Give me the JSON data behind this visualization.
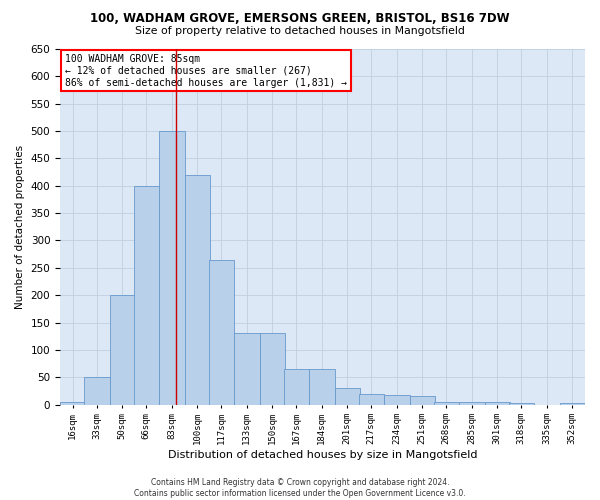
{
  "title1": "100, WADHAM GROVE, EMERSONS GREEN, BRISTOL, BS16 7DW",
  "title2": "Size of property relative to detached houses in Mangotsfield",
  "xlabel": "Distribution of detached houses by size in Mangotsfield",
  "ylabel": "Number of detached properties",
  "footer1": "Contains HM Land Registry data © Crown copyright and database right 2024.",
  "footer2": "Contains public sector information licensed under the Open Government Licence v3.0.",
  "annotation_line1": "100 WADHAM GROVE: 85sqm",
  "annotation_line2": "← 12% of detached houses are smaller (267)",
  "annotation_line3": "86% of semi-detached houses are larger (1,831) →",
  "bar_color": "#b8d0ea",
  "bar_edge_color": "#6699cc",
  "grid_color": "#c0d0e0",
  "background_color": "#dce8f5",
  "vline_color": "#cc0000",
  "vline_x": 85,
  "categories": [
    "16sqm",
    "33sqm",
    "50sqm",
    "66sqm",
    "83sqm",
    "100sqm",
    "117sqm",
    "133sqm",
    "150sqm",
    "167sqm",
    "184sqm",
    "201sqm",
    "217sqm",
    "234sqm",
    "251sqm",
    "268sqm",
    "285sqm",
    "301sqm",
    "318sqm",
    "335sqm",
    "352sqm"
  ],
  "bin_left": [
    8,
    24,
    41,
    57,
    74,
    91,
    107,
    124,
    141,
    157,
    174,
    191,
    207,
    224,
    241,
    257,
    274,
    291,
    307,
    324,
    341
  ],
  "bin_width": 17,
  "bar_heights": [
    5,
    50,
    200,
    400,
    500,
    420,
    265,
    130,
    130,
    65,
    65,
    30,
    20,
    18,
    15,
    5,
    5,
    5,
    3,
    0,
    3
  ],
  "ylim": [
    0,
    650
  ],
  "yticks": [
    0,
    50,
    100,
    150,
    200,
    250,
    300,
    350,
    400,
    450,
    500,
    550,
    600,
    650
  ]
}
